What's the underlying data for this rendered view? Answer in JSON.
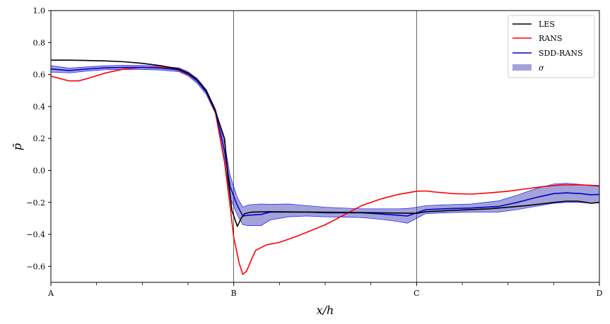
{
  "chart_data": {
    "type": "line",
    "xlabel": "x/h",
    "ylabel": "p̄",
    "x_range": [
      0,
      3
    ],
    "ylim": [
      -0.7,
      1.0
    ],
    "x_ticks": [
      {
        "x": 0,
        "label": "A"
      },
      {
        "x": 1,
        "label": "B"
      },
      {
        "x": 2,
        "label": "C"
      },
      {
        "x": 3,
        "label": "D"
      }
    ],
    "x_minor_ticks": [
      0.25,
      0.5,
      0.75,
      1.25,
      1.5,
      1.75,
      2.25,
      2.5,
      2.75
    ],
    "y_ticks": [
      {
        "y": 1.0,
        "label": "1.0"
      },
      {
        "y": 0.8,
        "label": "0.8"
      },
      {
        "y": 0.6,
        "label": "0.6"
      },
      {
        "y": 0.4,
        "label": "0.4"
      },
      {
        "y": 0.2,
        "label": "0.2"
      },
      {
        "y": 0.0,
        "label": "0.0"
      },
      {
        "y": -0.2,
        "label": "−0.2"
      },
      {
        "y": -0.4,
        "label": "−0.4"
      },
      {
        "y": -0.6,
        "label": "−0.6"
      }
    ],
    "vertical_lines": [
      1,
      2
    ],
    "grid": false,
    "legend_position": "top-right",
    "series": [
      {
        "name": "LES",
        "color": "#000000",
        "points": [
          [
            0,
            0.69
          ],
          [
            0.1,
            0.69
          ],
          [
            0.2,
            0.688
          ],
          [
            0.3,
            0.685
          ],
          [
            0.4,
            0.68
          ],
          [
            0.5,
            0.67
          ],
          [
            0.6,
            0.655
          ],
          [
            0.7,
            0.635
          ],
          [
            0.75,
            0.61
          ],
          [
            0.8,
            0.57
          ],
          [
            0.85,
            0.5
          ],
          [
            0.9,
            0.37
          ],
          [
            0.95,
            0.2
          ],
          [
            0.97,
            -0.05
          ],
          [
            0.99,
            -0.25
          ],
          [
            1.02,
            -0.35
          ],
          [
            1.04,
            -0.3
          ],
          [
            1.06,
            -0.27
          ],
          [
            1.1,
            -0.26
          ],
          [
            1.2,
            -0.258
          ],
          [
            1.4,
            -0.26
          ],
          [
            1.6,
            -0.262
          ],
          [
            1.8,
            -0.265
          ],
          [
            2.0,
            -0.268
          ],
          [
            2.05,
            -0.258
          ],
          [
            2.2,
            -0.25
          ],
          [
            2.4,
            -0.24
          ],
          [
            2.6,
            -0.22
          ],
          [
            2.75,
            -0.2
          ],
          [
            2.82,
            -0.192
          ],
          [
            2.88,
            -0.192
          ],
          [
            2.93,
            -0.2
          ],
          [
            2.95,
            -0.205
          ],
          [
            3.0,
            -0.2
          ]
        ]
      },
      {
        "name": "RANS",
        "color": "#ff0000",
        "points": [
          [
            0,
            0.59
          ],
          [
            0.05,
            0.575
          ],
          [
            0.1,
            0.56
          ],
          [
            0.15,
            0.56
          ],
          [
            0.2,
            0.575
          ],
          [
            0.3,
            0.61
          ],
          [
            0.4,
            0.635
          ],
          [
            0.5,
            0.645
          ],
          [
            0.6,
            0.645
          ],
          [
            0.65,
            0.64
          ],
          [
            0.7,
            0.625
          ],
          [
            0.75,
            0.6
          ],
          [
            0.8,
            0.56
          ],
          [
            0.85,
            0.49
          ],
          [
            0.9,
            0.36
          ],
          [
            0.95,
            0.05
          ],
          [
            0.98,
            -0.22
          ],
          [
            1.0,
            -0.42
          ],
          [
            1.03,
            -0.58
          ],
          [
            1.05,
            -0.65
          ],
          [
            1.07,
            -0.63
          ],
          [
            1.1,
            -0.55
          ],
          [
            1.12,
            -0.5
          ],
          [
            1.18,
            -0.465
          ],
          [
            1.25,
            -0.45
          ],
          [
            1.35,
            -0.41
          ],
          [
            1.5,
            -0.34
          ],
          [
            1.6,
            -0.28
          ],
          [
            1.7,
            -0.22
          ],
          [
            1.8,
            -0.18
          ],
          [
            1.9,
            -0.15
          ],
          [
            2.0,
            -0.13
          ],
          [
            2.05,
            -0.128
          ],
          [
            2.1,
            -0.135
          ],
          [
            2.2,
            -0.145
          ],
          [
            2.3,
            -0.148
          ],
          [
            2.4,
            -0.14
          ],
          [
            2.5,
            -0.13
          ],
          [
            2.6,
            -0.115
          ],
          [
            2.7,
            -0.1
          ],
          [
            2.8,
            -0.09
          ],
          [
            2.9,
            -0.09
          ],
          [
            3.0,
            -0.095
          ]
        ]
      },
      {
        "name": "SDD-RANS",
        "color": "#0000cc",
        "points": [
          [
            0,
            0.635
          ],
          [
            0.1,
            0.625
          ],
          [
            0.2,
            0.635
          ],
          [
            0.3,
            0.642
          ],
          [
            0.4,
            0.645
          ],
          [
            0.5,
            0.645
          ],
          [
            0.6,
            0.64
          ],
          [
            0.7,
            0.63
          ],
          [
            0.75,
            0.605
          ],
          [
            0.8,
            0.56
          ],
          [
            0.85,
            0.49
          ],
          [
            0.9,
            0.37
          ],
          [
            0.95,
            0.12
          ],
          [
            0.98,
            -0.1
          ],
          [
            1.02,
            -0.22
          ],
          [
            1.05,
            -0.285
          ],
          [
            1.08,
            -0.28
          ],
          [
            1.15,
            -0.275
          ],
          [
            1.2,
            -0.26
          ],
          [
            1.3,
            -0.26
          ],
          [
            1.4,
            -0.26
          ],
          [
            1.5,
            -0.265
          ],
          [
            1.6,
            -0.265
          ],
          [
            1.7,
            -0.265
          ],
          [
            1.8,
            -0.272
          ],
          [
            1.9,
            -0.28
          ],
          [
            1.95,
            -0.285
          ],
          [
            2.0,
            -0.265
          ],
          [
            2.05,
            -0.245
          ],
          [
            2.15,
            -0.24
          ],
          [
            2.3,
            -0.235
          ],
          [
            2.45,
            -0.225
          ],
          [
            2.55,
            -0.2
          ],
          [
            2.65,
            -0.17
          ],
          [
            2.75,
            -0.145
          ],
          [
            2.82,
            -0.14
          ],
          [
            2.9,
            -0.145
          ],
          [
            2.95,
            -0.152
          ],
          [
            3.0,
            -0.15
          ]
        ]
      }
    ],
    "band": {
      "name": "σ",
      "color": "#3333aa",
      "opacity": 0.45,
      "upper": [
        [
          0,
          0.655
        ],
        [
          0.1,
          0.64
        ],
        [
          0.2,
          0.648
        ],
        [
          0.3,
          0.655
        ],
        [
          0.4,
          0.658
        ],
        [
          0.5,
          0.658
        ],
        [
          0.6,
          0.652
        ],
        [
          0.7,
          0.642
        ],
        [
          0.75,
          0.618
        ],
        [
          0.8,
          0.575
        ],
        [
          0.85,
          0.505
        ],
        [
          0.9,
          0.385
        ],
        [
          0.95,
          0.17
        ],
        [
          0.98,
          -0.03
        ],
        [
          1.02,
          -0.17
        ],
        [
          1.05,
          -0.23
        ],
        [
          1.08,
          -0.215
        ],
        [
          1.15,
          -0.21
        ],
        [
          1.2,
          -0.212
        ],
        [
          1.3,
          -0.21
        ],
        [
          1.4,
          -0.22
        ],
        [
          1.5,
          -0.23
        ],
        [
          1.6,
          -0.235
        ],
        [
          1.7,
          -0.24
        ],
        [
          1.8,
          -0.24
        ],
        [
          1.9,
          -0.24
        ],
        [
          1.95,
          -0.238
        ],
        [
          2.0,
          -0.23
        ],
        [
          2.05,
          -0.22
        ],
        [
          2.15,
          -0.215
        ],
        [
          2.3,
          -0.21
        ],
        [
          2.45,
          -0.19
        ],
        [
          2.55,
          -0.155
        ],
        [
          2.65,
          -0.115
        ],
        [
          2.75,
          -0.085
        ],
        [
          2.82,
          -0.08
        ],
        [
          2.9,
          -0.088
        ],
        [
          2.95,
          -0.095
        ],
        [
          3.0,
          -0.1
        ]
      ],
      "lower": [
        [
          0,
          0.615
        ],
        [
          0.1,
          0.61
        ],
        [
          0.2,
          0.622
        ],
        [
          0.3,
          0.63
        ],
        [
          0.4,
          0.632
        ],
        [
          0.5,
          0.632
        ],
        [
          0.6,
          0.628
        ],
        [
          0.7,
          0.618
        ],
        [
          0.75,
          0.592
        ],
        [
          0.8,
          0.545
        ],
        [
          0.85,
          0.475
        ],
        [
          0.9,
          0.355
        ],
        [
          0.95,
          0.07
        ],
        [
          0.98,
          -0.17
        ],
        [
          1.02,
          -0.28
        ],
        [
          1.05,
          -0.34
        ],
        [
          1.08,
          -0.345
        ],
        [
          1.15,
          -0.345
        ],
        [
          1.2,
          -0.31
        ],
        [
          1.3,
          -0.29
        ],
        [
          1.4,
          -0.285
        ],
        [
          1.5,
          -0.29
        ],
        [
          1.6,
          -0.292
        ],
        [
          1.7,
          -0.295
        ],
        [
          1.8,
          -0.305
        ],
        [
          1.9,
          -0.32
        ],
        [
          1.95,
          -0.33
        ],
        [
          2.0,
          -0.3
        ],
        [
          2.05,
          -0.27
        ],
        [
          2.15,
          -0.265
        ],
        [
          2.3,
          -0.26
        ],
        [
          2.45,
          -0.26
        ],
        [
          2.55,
          -0.245
        ],
        [
          2.65,
          -0.225
        ],
        [
          2.75,
          -0.205
        ],
        [
          2.82,
          -0.2
        ],
        [
          2.9,
          -0.2
        ],
        [
          2.95,
          -0.205
        ],
        [
          3.0,
          -0.2
        ]
      ]
    }
  }
}
